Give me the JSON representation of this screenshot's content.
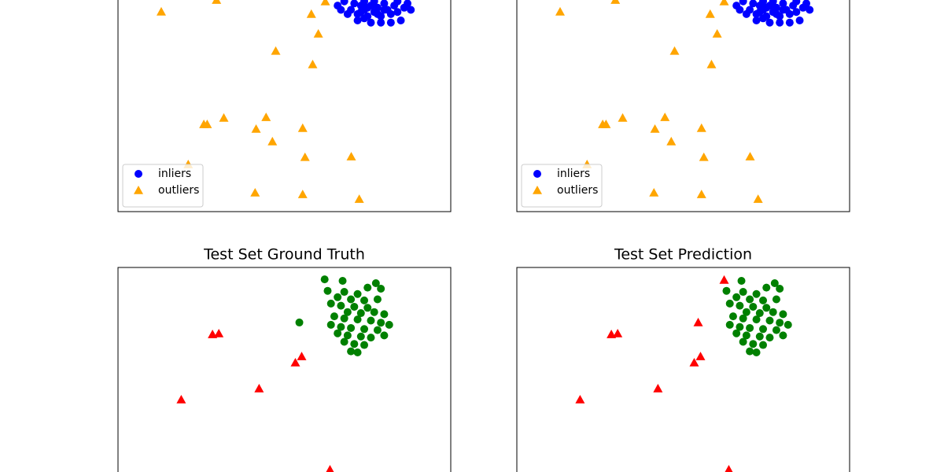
{
  "chart_data": [
    {
      "type": "scatter",
      "xlim": [
        0,
        100
      ],
      "ylim": [
        0,
        100
      ],
      "legend": "lower left",
      "series": [
        {
          "name": "inliers",
          "color": "#0000ff",
          "marker": "o",
          "x": [
            66,
            68,
            70,
            71,
            72,
            73,
            74,
            74,
            75,
            76,
            77,
            77,
            78,
            79,
            80,
            81,
            82,
            83,
            84,
            85,
            86,
            87,
            72,
            76,
            79,
            82,
            69,
            74,
            78,
            80,
            75,
            73,
            84,
            88,
            67
          ],
          "values": [
            97,
            99,
            95,
            98,
            93,
            97,
            99,
            95,
            92,
            97,
            94,
            99,
            96,
            92,
            98,
            95,
            93,
            97,
            94,
            90,
            96,
            98,
            90,
            89,
            89,
            89,
            93,
            91,
            93,
            95,
            96,
            94,
            99,
            95,
            95
          ]
        },
        {
          "name": "outliers",
          "color": "#ffa500",
          "marker": "^",
          "x": [
            13.0,
            29.6,
            58.1,
            62.3,
            60.2,
            47.4,
            58.5,
            25.8,
            26.8,
            31.8,
            44.5,
            41.5,
            55.5,
            46.4,
            56.2,
            70.1,
            21.1,
            41.2,
            55.5,
            72.5
          ],
          "values": [
            94.1,
            99.6,
            93.0,
            98.9,
            83.7,
            75.6,
            69.3,
            41.1,
            41.1,
            44.1,
            44.4,
            38.9,
            39.3,
            33.0,
            25.6,
            25.9,
            22.2,
            8.9,
            8.1,
            5.9
          ]
        }
      ]
    },
    {
      "type": "scatter",
      "xlim": [
        0,
        100
      ],
      "ylim": [
        0,
        100
      ],
      "legend": "lower left",
      "series": [
        {
          "name": "inliers",
          "color": "#0000ff",
          "marker": "o",
          "x": [
            66,
            68,
            70,
            71,
            72,
            73,
            74,
            74,
            75,
            76,
            77,
            77,
            78,
            79,
            80,
            81,
            82,
            83,
            84,
            85,
            86,
            87,
            72,
            76,
            79,
            82,
            69,
            74,
            78,
            80,
            75,
            73,
            84,
            88,
            67
          ],
          "values": [
            97,
            99,
            95,
            98,
            93,
            97,
            99,
            95,
            92,
            97,
            94,
            99,
            96,
            92,
            98,
            95,
            93,
            97,
            94,
            90,
            96,
            98,
            90,
            89,
            89,
            89,
            93,
            91,
            93,
            95,
            96,
            94,
            99,
            95,
            95
          ]
        },
        {
          "name": "outliers",
          "color": "#ffa500",
          "marker": "^",
          "x": [
            13.0,
            29.6,
            58.1,
            62.3,
            60.2,
            47.4,
            58.5,
            25.8,
            26.8,
            31.8,
            44.5,
            41.5,
            55.5,
            46.4,
            56.2,
            70.1,
            21.1,
            41.2,
            55.5,
            72.5
          ],
          "values": [
            94.1,
            99.6,
            93.0,
            98.9,
            83.7,
            75.6,
            69.3,
            41.1,
            41.1,
            44.1,
            44.4,
            38.9,
            39.3,
            33.0,
            25.6,
            25.9,
            22.2,
            8.9,
            8.1,
            5.9
          ]
        }
      ]
    },
    {
      "type": "scatter",
      "title": "Test Set Ground Truth",
      "xlim": [
        0,
        100
      ],
      "ylim": [
        0,
        100
      ],
      "series": [
        {
          "color": "#008000",
          "marker": "o",
          "x": [
            62.1,
            67.5,
            77.5,
            75,
            79,
            63,
            68,
            72,
            66,
            70,
            74,
            78,
            64,
            67,
            71,
            75,
            69,
            73,
            77,
            80,
            65,
            68,
            72,
            76,
            79,
            81.5,
            64,
            67,
            70,
            74,
            78,
            66,
            69,
            73,
            76,
            80,
            68,
            71,
            74,
            70,
            72,
            54.5
          ],
          "values": [
            94.4,
            93.7,
            92.6,
            90.5,
            90,
            89,
            88.5,
            87.5,
            86,
            85,
            84.5,
            85,
            83,
            82,
            81.5,
            81,
            79,
            78.5,
            79,
            78,
            77,
            76,
            75.5,
            75,
            74,
            73,
            73,
            72,
            71.5,
            71,
            70.5,
            69,
            68,
            67.5,
            67,
            68,
            65,
            64,
            63.5,
            60.5,
            60,
            74.1
          ]
        },
        {
          "color": "#ff0000",
          "marker": "^",
          "x": [
            28.4,
            30.3,
            55.2,
            53.3,
            42.4,
            19.0,
            63.7
          ],
          "values": [
            68.5,
            68.9,
            58.1,
            55.2,
            43.0,
            37.8,
            4.8
          ]
        }
      ]
    },
    {
      "type": "scatter",
      "title": "Test Set Prediction",
      "xlim": [
        0,
        100
      ],
      "ylim": [
        0,
        100
      ],
      "series": [
        {
          "color": "#008000",
          "marker": "o",
          "x": [
            67.5,
            77.5,
            75,
            79,
            63,
            68,
            72,
            66,
            70,
            74,
            78,
            64,
            67,
            71,
            75,
            69,
            73,
            77,
            80,
            65,
            68,
            72,
            76,
            79,
            81.5,
            64,
            67,
            70,
            74,
            78,
            66,
            69,
            73,
            76,
            80,
            68,
            71,
            74,
            70,
            72
          ],
          "values": [
            93.7,
            92.6,
            90.5,
            90,
            89,
            88.5,
            87.5,
            86,
            85,
            84.5,
            85,
            83,
            82,
            81.5,
            81,
            79,
            78.5,
            79,
            78,
            77,
            76,
            75.5,
            75,
            74,
            73,
            73,
            72,
            71.5,
            71,
            70.5,
            69,
            68,
            67.5,
            67,
            68,
            65,
            64,
            63.5,
            60.5,
            60
          ]
        },
        {
          "color": "#ff0000",
          "marker": "^",
          "x": [
            28.4,
            30.3,
            55.2,
            53.3,
            42.4,
            19.0,
            63.7,
            62.3,
            54.5
          ],
          "values": [
            68.5,
            68.9,
            58.1,
            55.2,
            43.0,
            37.8,
            4.8,
            94.1,
            74.1
          ]
        }
      ]
    }
  ]
}
